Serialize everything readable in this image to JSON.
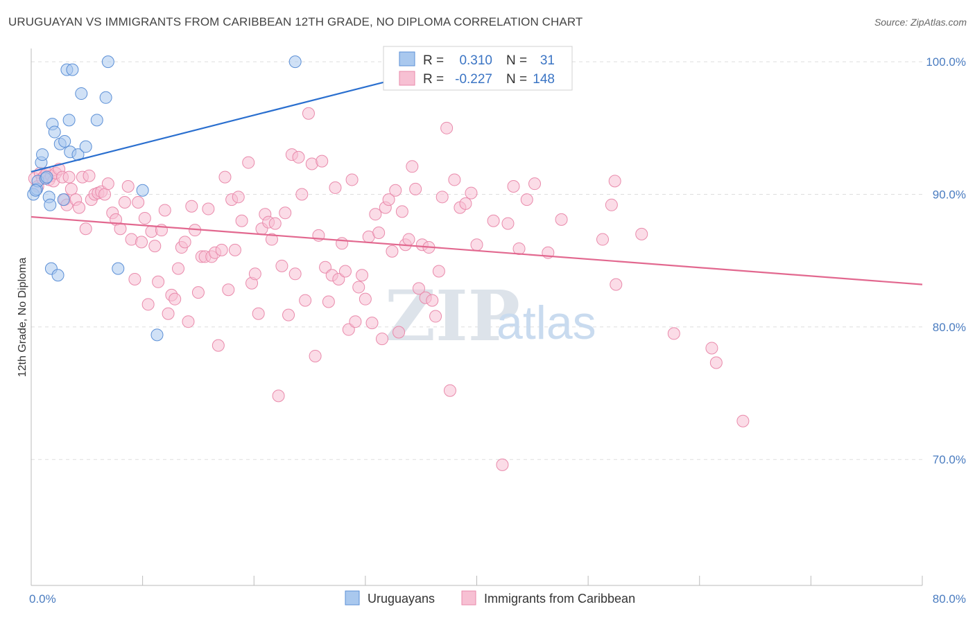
{
  "title": "URUGUAYAN VS IMMIGRANTS FROM CARIBBEAN 12TH GRADE, NO DIPLOMA CORRELATION CHART",
  "source": "Source: ZipAtlas.com",
  "watermark": {
    "zip": "ZIP",
    "atlas": "atlas"
  },
  "colors": {
    "blue_fill": "#a9c8ee",
    "blue_stroke": "#5b8fd6",
    "blue_line": "#2a6fcf",
    "pink_fill": "#f7c0d3",
    "pink_stroke": "#e98aab",
    "pink_line": "#e2688f",
    "tick_text": "#4a7cc0",
    "grid": "#dddddd"
  },
  "legend_box": {
    "rows": [
      {
        "r_label": "R =",
        "r_value": "0.310",
        "n_label": "N =",
        "n_value": "31",
        "series": "Uruguayans"
      },
      {
        "r_label": "R =",
        "r_value": "-0.227",
        "n_label": "N =",
        "n_value": "148",
        "series": "Immigrants from Caribbean"
      }
    ]
  },
  "chart_data": {
    "type": "scatter",
    "xlabel": "",
    "ylabel": "12th Grade, No Diploma",
    "xlim": [
      0,
      80
    ],
    "ylim": [
      60.5,
      101
    ],
    "x_tick_labels": [
      "0.0%",
      "80.0%"
    ],
    "y_ticks": [
      70,
      80,
      90,
      100
    ],
    "y_tick_labels": [
      "70.0%",
      "80.0%",
      "90.0%",
      "100.0%"
    ],
    "grid": true,
    "legend_position": "bottom-center",
    "series": [
      {
        "name": "Uruguayans",
        "color": "#a9c8ee",
        "stats": {
          "R": 0.31,
          "N": 31
        },
        "trend": {
          "x0": 0,
          "y0": 91.7,
          "x1": 38.9,
          "y1": 100.0
        },
        "points": [
          [
            0.2,
            90.0
          ],
          [
            0.5,
            90.4
          ],
          [
            0.6,
            91.0
          ],
          [
            0.9,
            92.4
          ],
          [
            1.0,
            93.0
          ],
          [
            1.3,
            91.2
          ],
          [
            1.6,
            89.8
          ],
          [
            1.7,
            89.2
          ],
          [
            1.8,
            84.4
          ],
          [
            1.9,
            95.3
          ],
          [
            2.1,
            94.7
          ],
          [
            2.4,
            83.9
          ],
          [
            2.6,
            93.8
          ],
          [
            2.9,
            89.6
          ],
          [
            3.0,
            94.0
          ],
          [
            3.2,
            99.4
          ],
          [
            3.4,
            95.6
          ],
          [
            3.5,
            93.2
          ],
          [
            3.7,
            99.4
          ],
          [
            4.2,
            93.0
          ],
          [
            4.5,
            97.6
          ],
          [
            4.9,
            93.6
          ],
          [
            5.9,
            95.6
          ],
          [
            6.7,
            97.3
          ],
          [
            6.9,
            100.0
          ],
          [
            7.8,
            84.4
          ],
          [
            10.0,
            90.3
          ],
          [
            11.3,
            79.4
          ],
          [
            23.7,
            100.0
          ],
          [
            0.4,
            90.3
          ],
          [
            1.4,
            91.3
          ]
        ]
      },
      {
        "name": "Immigrants from Caribbean",
        "color": "#f7c0d3",
        "stats": {
          "R": -0.227,
          "N": 148
        },
        "trend": {
          "x0": 0,
          "y0": 88.3,
          "x1": 80,
          "y1": 83.2
        },
        "points": [
          [
            0.3,
            91.2
          ],
          [
            0.6,
            90.6
          ],
          [
            0.8,
            91.6
          ],
          [
            1.0,
            91.2
          ],
          [
            1.2,
            91.4
          ],
          [
            1.4,
            91.6
          ],
          [
            1.6,
            91.1
          ],
          [
            1.8,
            91.4
          ],
          [
            2.0,
            91.0
          ],
          [
            2.2,
            91.6
          ],
          [
            2.5,
            91.9
          ],
          [
            2.8,
            91.3
          ],
          [
            3.0,
            89.6
          ],
          [
            3.2,
            89.2
          ],
          [
            3.4,
            91.3
          ],
          [
            3.6,
            90.4
          ],
          [
            4.0,
            89.6
          ],
          [
            4.3,
            89.0
          ],
          [
            4.6,
            91.3
          ],
          [
            4.9,
            87.4
          ],
          [
            5.2,
            91.4
          ],
          [
            5.4,
            89.6
          ],
          [
            5.7,
            90.0
          ],
          [
            6.0,
            90.1
          ],
          [
            6.3,
            90.2
          ],
          [
            6.6,
            90.0
          ],
          [
            6.9,
            90.8
          ],
          [
            7.3,
            88.6
          ],
          [
            7.6,
            88.1
          ],
          [
            8.0,
            87.4
          ],
          [
            8.4,
            89.4
          ],
          [
            8.7,
            90.6
          ],
          [
            9.0,
            86.6
          ],
          [
            9.3,
            83.6
          ],
          [
            9.6,
            89.4
          ],
          [
            9.9,
            86.4
          ],
          [
            10.2,
            88.2
          ],
          [
            10.5,
            81.7
          ],
          [
            10.8,
            87.2
          ],
          [
            11.1,
            86.1
          ],
          [
            11.4,
            83.4
          ],
          [
            11.7,
            87.3
          ],
          [
            12.0,
            88.8
          ],
          [
            12.3,
            81.0
          ],
          [
            12.6,
            82.4
          ],
          [
            12.9,
            82.1
          ],
          [
            13.2,
            84.4
          ],
          [
            13.5,
            86.0
          ],
          [
            13.8,
            86.4
          ],
          [
            14.1,
            80.4
          ],
          [
            14.4,
            89.1
          ],
          [
            14.7,
            87.3
          ],
          [
            15.0,
            82.6
          ],
          [
            15.3,
            85.3
          ],
          [
            15.6,
            85.3
          ],
          [
            15.9,
            88.9
          ],
          [
            16.2,
            85.3
          ],
          [
            16.5,
            85.6
          ],
          [
            16.8,
            78.6
          ],
          [
            17.1,
            85.8
          ],
          [
            17.4,
            91.3
          ],
          [
            17.7,
            82.8
          ],
          [
            18.0,
            89.6
          ],
          [
            18.3,
            85.8
          ],
          [
            18.6,
            89.8
          ],
          [
            18.9,
            88.0
          ],
          [
            19.5,
            92.4
          ],
          [
            19.8,
            83.3
          ],
          [
            20.1,
            84.0
          ],
          [
            20.4,
            81.0
          ],
          [
            20.7,
            87.4
          ],
          [
            21.0,
            88.5
          ],
          [
            21.3,
            87.9
          ],
          [
            21.6,
            86.6
          ],
          [
            21.9,
            87.8
          ],
          [
            22.2,
            74.8
          ],
          [
            22.5,
            84.6
          ],
          [
            22.8,
            88.6
          ],
          [
            23.1,
            80.9
          ],
          [
            23.4,
            93.0
          ],
          [
            23.7,
            84.0
          ],
          [
            24.0,
            92.8
          ],
          [
            24.3,
            90.0
          ],
          [
            24.6,
            82.0
          ],
          [
            24.9,
            96.1
          ],
          [
            25.2,
            92.3
          ],
          [
            25.5,
            77.8
          ],
          [
            25.8,
            86.9
          ],
          [
            26.1,
            92.5
          ],
          [
            26.4,
            84.5
          ],
          [
            26.7,
            81.9
          ],
          [
            27.0,
            83.9
          ],
          [
            27.3,
            90.5
          ],
          [
            27.6,
            83.6
          ],
          [
            27.9,
            86.3
          ],
          [
            28.2,
            84.2
          ],
          [
            28.5,
            79.8
          ],
          [
            28.8,
            91.1
          ],
          [
            29.1,
            80.4
          ],
          [
            29.4,
            83.0
          ],
          [
            29.7,
            83.9
          ],
          [
            30.0,
            82.1
          ],
          [
            30.3,
            86.8
          ],
          [
            30.6,
            80.3
          ],
          [
            30.9,
            88.5
          ],
          [
            31.2,
            87.1
          ],
          [
            31.5,
            79.1
          ],
          [
            31.8,
            89.0
          ],
          [
            32.1,
            89.6
          ],
          [
            32.4,
            85.7
          ],
          [
            32.7,
            90.3
          ],
          [
            33.0,
            79.6
          ],
          [
            33.3,
            88.7
          ],
          [
            33.6,
            86.2
          ],
          [
            33.9,
            86.6
          ],
          [
            34.2,
            92.1
          ],
          [
            34.5,
            90.4
          ],
          [
            34.8,
            82.9
          ],
          [
            35.1,
            86.2
          ],
          [
            35.4,
            82.2
          ],
          [
            35.7,
            86.0
          ],
          [
            36.0,
            82.0
          ],
          [
            36.3,
            80.8
          ],
          [
            36.6,
            84.2
          ],
          [
            36.9,
            89.8
          ],
          [
            37.3,
            95.0
          ],
          [
            37.6,
            75.2
          ],
          [
            38.0,
            91.1
          ],
          [
            38.5,
            89.0
          ],
          [
            39.0,
            89.3
          ],
          [
            39.5,
            90.1
          ],
          [
            40.0,
            86.2
          ],
          [
            41.5,
            88.0
          ],
          [
            42.3,
            69.6
          ],
          [
            42.8,
            87.8
          ],
          [
            43.3,
            90.6
          ],
          [
            43.8,
            85.9
          ],
          [
            44.5,
            89.6
          ],
          [
            45.2,
            90.8
          ],
          [
            46.4,
            85.6
          ],
          [
            47.6,
            88.1
          ],
          [
            52.4,
            91.0
          ],
          [
            52.5,
            83.2
          ],
          [
            54.8,
            87.0
          ],
          [
            57.7,
            79.5
          ],
          [
            61.1,
            78.4
          ],
          [
            61.5,
            77.3
          ],
          [
            63.9,
            72.9
          ],
          [
            52.1,
            89.2
          ],
          [
            51.3,
            86.6
          ],
          [
            39.1,
            100.0
          ],
          [
            45.1,
            100.0
          ]
        ]
      }
    ]
  },
  "legend": {
    "items": [
      "Uruguayans",
      "Immigrants from Caribbean"
    ]
  }
}
